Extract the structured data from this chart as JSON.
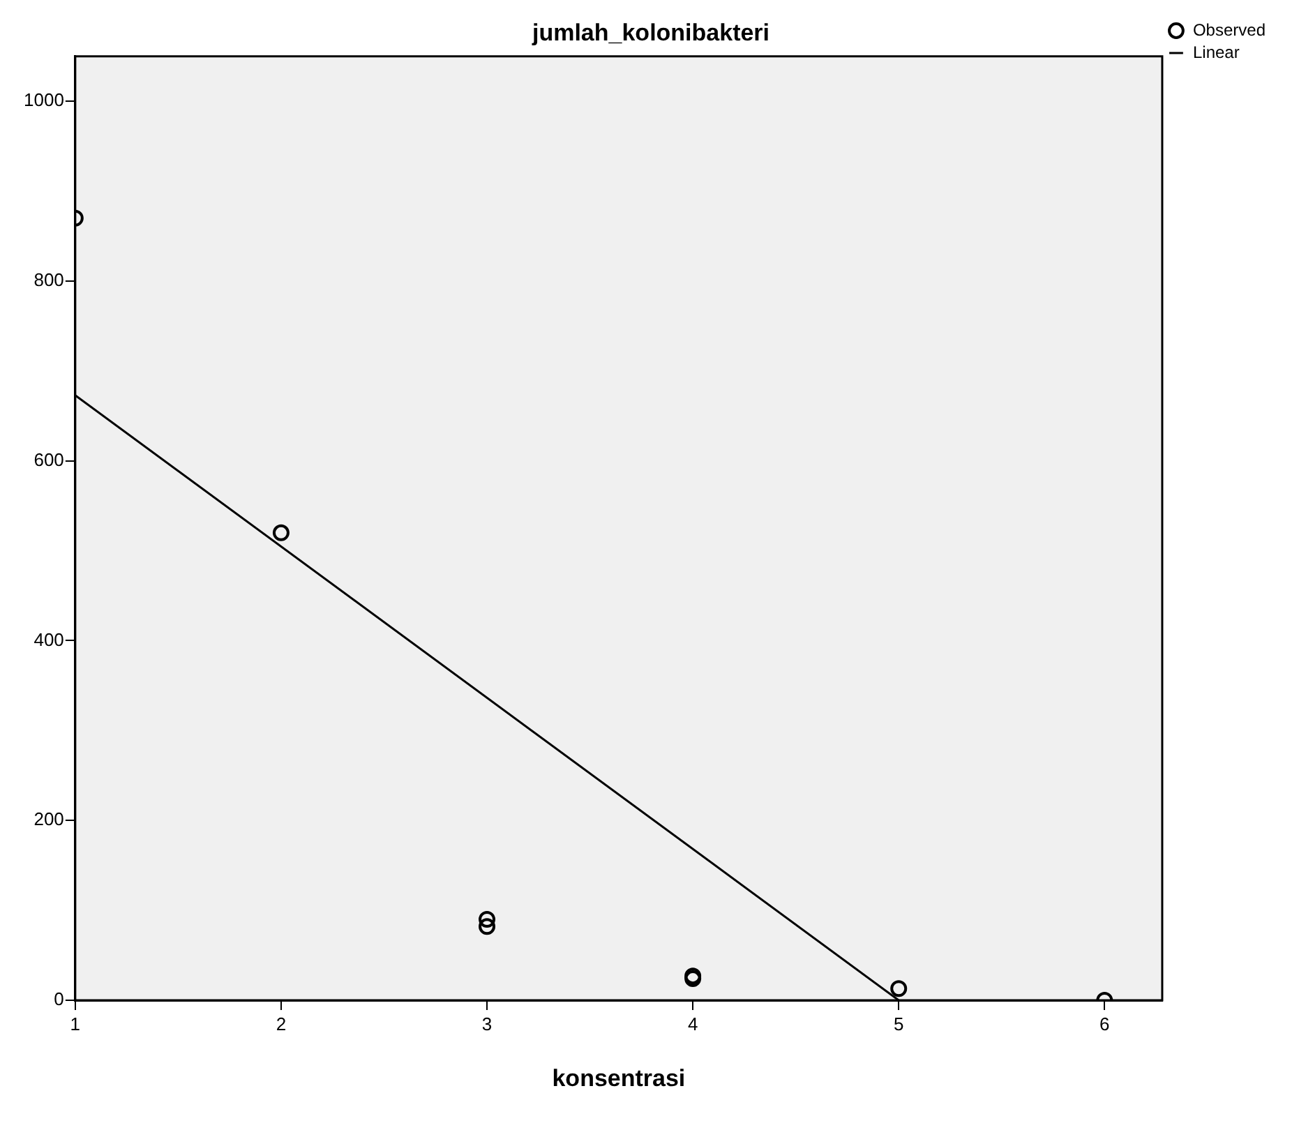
{
  "chart_data": {
    "type": "scatter",
    "title": "jumlah_kolonibakteri",
    "xlabel": "konsentrasi",
    "xlim": [
      1,
      6.28
    ],
    "xticks": [
      1,
      2,
      3,
      4,
      5,
      6
    ],
    "ylim": [
      0,
      1050
    ],
    "yticks": [
      0,
      200,
      400,
      600,
      800,
      1000
    ],
    "grid": false,
    "legend": "top right",
    "series": [
      {
        "name": "Observed",
        "type": "scatter",
        "color": "#000000",
        "marker": "circle",
        "x": [
          1,
          2,
          3,
          3,
          4,
          4,
          5,
          6
        ],
        "values": [
          870,
          520,
          90,
          82,
          27,
          24,
          13,
          0
        ]
      },
      {
        "name": "Linear",
        "type": "line",
        "color": "#000000",
        "marker": "none",
        "line_style": "solid",
        "x": [
          1,
          5
        ],
        "values": [
          673,
          0
        ]
      }
    ]
  }
}
